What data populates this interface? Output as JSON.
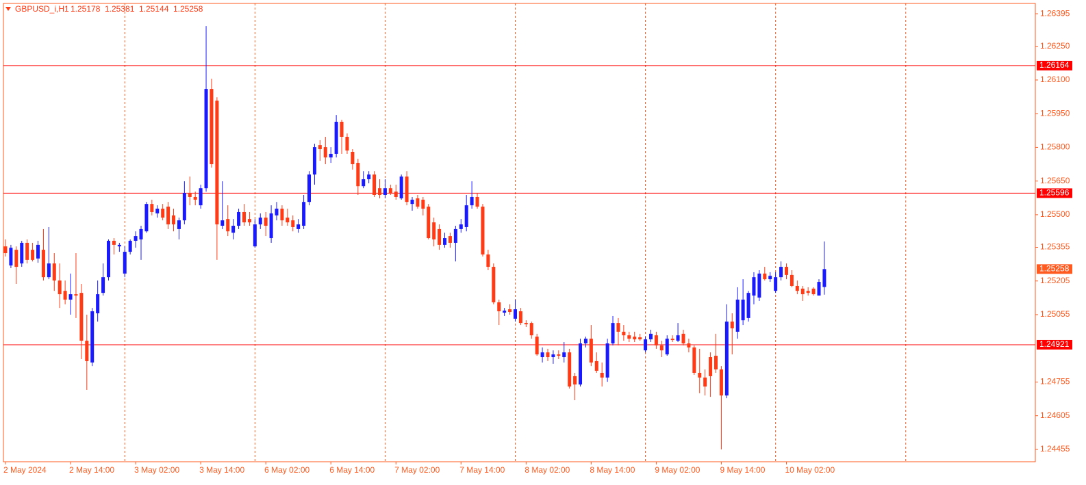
{
  "chart_data": {
    "type": "candlestick",
    "title": "GBPUSD_i,H1",
    "up_color": "#1a1aff",
    "down_color": "#ff3a14",
    "hline_color": "#ff0000",
    "axis_color": "#ff5a1f",
    "hlines": [
      1.26164,
      1.25596,
      1.24921
    ],
    "ylim": [
      1.244,
      1.26441
    ],
    "yticks": [
      1.26395,
      {
        "value": 1.2625,
        "label": "1.26250"
      },
      {
        "value": 1.261,
        "label": "1.26100"
      },
      {
        "value": 1.2595,
        "label": "1.25950"
      },
      {
        "value": 1.258,
        "label": "1.25800"
      },
      {
        "value": 1.2565,
        "label": "1.25650"
      },
      {
        "value": 1.255,
        "label": "1.25500"
      },
      1.25355,
      1.25205,
      1.25055,
      1.24755,
      1.24605,
      1.24455
    ],
    "categories": [
      "2 May 2024",
      null,
      null,
      null,
      null,
      null,
      null,
      null,
      null,
      null,
      null,
      null,
      "2 May 14:00",
      null,
      null,
      null,
      null,
      null,
      null,
      null,
      null,
      null,
      null,
      null,
      "3 May 02:00",
      null,
      null,
      null,
      null,
      null,
      null,
      null,
      null,
      null,
      null,
      null,
      "3 May 14:00",
      null,
      null,
      null,
      null,
      null,
      null,
      null,
      null,
      null,
      null,
      null,
      "6 May 02:00",
      null,
      null,
      null,
      null,
      null,
      null,
      null,
      null,
      null,
      null,
      null,
      "6 May 14:00",
      null,
      null,
      null,
      null,
      null,
      null,
      null,
      null,
      null,
      null,
      null,
      "7 May 02:00",
      null,
      null,
      null,
      null,
      null,
      null,
      null,
      null,
      null,
      null,
      null,
      "7 May 14:00",
      null,
      null,
      null,
      null,
      null,
      null,
      null,
      null,
      null,
      null,
      null,
      "8 May 02:00",
      null,
      null,
      null,
      null,
      null,
      null,
      null,
      null,
      null,
      null,
      null,
      "8 May 14:00",
      null,
      null,
      null,
      null,
      null,
      null,
      null,
      null,
      null,
      null,
      null,
      "9 May 02:00",
      null,
      null,
      null,
      null,
      null,
      null,
      null,
      null,
      null,
      null,
      null,
      "9 May 14:00",
      null,
      null,
      null,
      null,
      null,
      null,
      null,
      null,
      null,
      null,
      null,
      "10 May 02:00",
      null,
      null,
      null,
      null,
      null,
      null,
      null
    ],
    "open": [
      1.25359,
      1.25274,
      1.25344,
      1.25283,
      1.25375,
      1.25344,
      1.25305,
      1.25344,
      1.25222,
      1.25283,
      1.25207,
      1.25161,
      1.25122,
      1.25146,
      1.25152,
      1.24939,
      1.24842,
      1.25061,
      1.25152,
      1.25222,
      1.25384,
      1.25359,
      1.25238,
      1.25335,
      1.25384,
      1.2539,
      1.25426,
      1.25548,
      1.25506,
      1.25527,
      1.25536,
      1.25497,
      1.25436,
      1.25475,
      1.25597,
      1.25579,
      1.25542,
      1.25618,
      1.2606,
      1.26008,
      1.25451,
      1.25481,
      1.2542,
      1.25451,
      1.25512,
      1.25481,
      1.25359,
      1.25457,
      1.25487,
      1.25396,
      1.25497,
      1.25527,
      1.25487,
      1.25475,
      1.25436,
      1.25451,
      1.25557,
      1.25679,
      1.2581,
      1.25801,
      1.25755,
      1.25771,
      1.25914,
      1.25847,
      1.2578,
      1.25731,
      1.25627,
      1.25658,
      1.25679,
      1.25618,
      1.25588,
      1.25618,
      1.25603,
      1.25573,
      1.2567,
      1.25548,
      1.25573,
      1.25567,
      1.25536,
      1.25466,
      1.25436,
      1.25366,
      1.25405,
      1.25375,
      1.25436,
      1.25445,
      1.25542,
      1.25579,
      1.25536,
      1.25323,
      1.25268,
      1.2511,
      1.25064,
      1.25079,
      1.25037,
      1.2507,
      1.25018,
      1.25018,
      1.24957,
      1.24866,
      1.24887,
      1.24866,
      1.24878,
      1.24866,
      1.24887,
      1.24781,
      1.24744,
      1.24927,
      1.24948,
      1.24848,
      1.24796,
      1.24775,
      1.24927,
      1.25018,
      1.24979,
      1.24963,
      1.24957,
      1.24954,
      1.24896,
      1.24945,
      1.24963,
      1.24918,
      1.24878,
      1.24948,
      1.24939,
      1.2497,
      1.24927,
      1.24909,
      1.24796,
      1.24775,
      1.24866,
      1.24872,
      1.24811,
      1.24695,
      1.25024,
      1.24979,
      1.2503,
      1.2504,
      1.2514,
      1.25131,
      1.25238,
      1.25213,
      1.25161,
      1.25222,
      1.25268,
      1.25232,
      1.25183,
      1.25171,
      1.25161,
      1.25171,
      1.2514,
      1.25178
    ],
    "high": [
      1.2539,
      1.25366,
      1.25359,
      1.25384,
      1.2539,
      1.25375,
      1.25384,
      1.25436,
      1.25445,
      1.25329,
      1.25283,
      1.25207,
      1.25238,
      1.25329,
      1.25192,
      1.25055,
      1.25085,
      1.25207,
      1.25283,
      1.2539,
      1.25396,
      1.25375,
      1.25359,
      1.2539,
      1.25426,
      1.25451,
      1.25557,
      1.25567,
      1.25542,
      1.25548,
      1.25557,
      1.25527,
      1.25487,
      1.25649,
      1.2567,
      1.25603,
      1.25634,
      1.2634,
      1.26106,
      1.26023,
      1.25649,
      1.25542,
      1.25481,
      1.25527,
      1.25548,
      1.25512,
      1.25481,
      1.25506,
      1.25512,
      1.25542,
      1.25557,
      1.25542,
      1.25527,
      1.25497,
      1.25481,
      1.25588,
      1.25694,
      1.25816,
      1.25832,
      1.25847,
      1.25801,
      1.25944,
      1.25923,
      1.25862,
      1.25792,
      1.25749,
      1.25694,
      1.25694,
      1.25694,
      1.25658,
      1.25658,
      1.25634,
      1.25634,
      1.25679,
      1.25694,
      1.25579,
      1.25588,
      1.25579,
      1.25548,
      1.25487,
      1.25457,
      1.2542,
      1.2542,
      1.25451,
      1.25481,
      1.25588,
      1.25649,
      1.25597,
      1.25548,
      1.25344,
      1.25283,
      1.25122,
      1.25085,
      1.25101,
      1.25122,
      1.25085,
      1.2503,
      1.25024,
      1.2497,
      1.24909,
      1.24903,
      1.24896,
      1.24896,
      1.24933,
      1.24903,
      1.24796,
      1.24948,
      1.24957,
      1.25009,
      1.24887,
      1.24842,
      1.24948,
      1.25049,
      1.2504,
      1.25009,
      1.24979,
      1.24979,
      1.2497,
      1.24957,
      1.24988,
      1.24979,
      1.24939,
      1.24963,
      1.24963,
      1.25018,
      1.24988,
      1.24948,
      1.24918,
      1.24903,
      1.24811,
      1.24887,
      1.2497,
      1.24826,
      1.25101,
      1.25061,
      1.25177,
      1.25213,
      1.25161,
      1.25244,
      1.25253,
      1.25268,
      1.25244,
      1.25244,
      1.25292,
      1.25283,
      1.25253,
      1.25207,
      1.25183,
      1.25177,
      1.25177,
      1.25213,
      1.25381
    ],
    "low": [
      1.25314,
      1.25262,
      1.25192,
      1.25268,
      1.25283,
      1.25292,
      1.25286,
      1.25207,
      1.25213,
      1.25161,
      1.25085,
      1.25101,
      1.25055,
      1.2504,
      1.24857,
      1.2472,
      1.24826,
      1.25024,
      1.2514,
      1.25207,
      1.25323,
      1.25335,
      1.25222,
      1.25323,
      1.25353,
      1.25299,
      1.2542,
      1.25497,
      1.25487,
      1.25475,
      1.25436,
      1.25426,
      1.2539,
      1.25457,
      1.25542,
      1.25542,
      1.25527,
      1.25603,
      1.2571,
      1.25299,
      1.25436,
      1.25405,
      1.2539,
      1.25436,
      1.25451,
      1.25451,
      1.25353,
      1.25436,
      1.25405,
      1.25375,
      1.25475,
      1.25451,
      1.25451,
      1.25426,
      1.2542,
      1.25436,
      1.25542,
      1.25634,
      1.2574,
      1.25725,
      1.25731,
      1.25755,
      1.25771,
      1.25771,
      1.25701,
      1.25588,
      1.25618,
      1.2564,
      1.25579,
      1.25573,
      1.25573,
      1.25588,
      1.25567,
      1.25567,
      1.25542,
      1.25518,
      1.25527,
      1.25497,
      1.2539,
      1.25359,
      1.25344,
      1.25353,
      1.25353,
      1.25292,
      1.2542,
      1.25426,
      1.25527,
      1.25527,
      1.25314,
      1.25253,
      1.25101,
      1.25009,
      1.25049,
      1.25055,
      1.25024,
      1.25009,
      1.25,
      1.24948,
      1.24872,
      1.24842,
      1.24848,
      1.24836,
      1.24857,
      1.24842,
      1.24726,
      1.24674,
      1.24735,
      1.24909,
      1.24826,
      1.24796,
      1.24735,
      1.24756,
      1.24918,
      1.24918,
      1.24939,
      1.24933,
      1.24933,
      1.24939,
      1.24887,
      1.24933,
      1.24903,
      1.24866,
      1.24872,
      1.24933,
      1.24933,
      1.24918,
      1.24887,
      1.24787,
      1.24705,
      1.24695,
      1.24689,
      1.24796,
      1.24455,
      1.24683,
      1.24878,
      1.24948,
      1.25009,
      1.25024,
      1.25101,
      1.25116,
      1.25207,
      1.25201,
      1.25152,
      1.25207,
      1.25213,
      1.25177,
      1.25146,
      1.25116,
      1.2514,
      1.2514,
      1.2514,
      1.25144
    ],
    "close": [
      1.25329,
      1.25353,
      1.25268,
      1.25375,
      1.25299,
      1.25299,
      1.25366,
      1.25222,
      1.25283,
      1.25207,
      1.25146,
      1.25122,
      1.25146,
      1.2514,
      1.24939,
      1.24848,
      1.2507,
      1.25146,
      1.25222,
      1.25384,
      1.25366,
      1.25366,
      1.25335,
      1.25384,
      1.25405,
      1.25436,
      1.25548,
      1.25512,
      1.25527,
      1.25487,
      1.25457,
      1.25457,
      1.25475,
      1.25597,
      1.25579,
      1.25567,
      1.25618,
      1.2606,
      1.25725,
      1.25457,
      1.25475,
      1.25426,
      1.25451,
      1.25512,
      1.25466,
      1.25466,
      1.25457,
      1.25487,
      1.25451,
      1.25506,
      1.25527,
      1.25475,
      1.25466,
      1.25445,
      1.25457,
      1.25557,
      1.25679,
      1.25801,
      1.25792,
      1.25755,
      1.25771,
      1.25914,
      1.25847,
      1.25786,
      1.25725,
      1.25627,
      1.25658,
      1.25679,
      1.25588,
      1.25588,
      1.25618,
      1.25597,
      1.25579,
      1.2567,
      1.25557,
      1.25567,
      1.25536,
      1.25527,
      1.25396,
      1.2539,
      1.25366,
      1.25396,
      1.25375,
      1.25436,
      1.25457,
      1.25542,
      1.25579,
      1.25536,
      1.25323,
      1.25268,
      1.2511,
      1.2507,
      1.25073,
      1.25067,
      1.25079,
      1.25018,
      1.25012,
      1.24963,
      1.24878,
      1.24887,
      1.24866,
      1.24878,
      1.24872,
      1.24887,
      1.24735,
      1.24744,
      1.24927,
      1.24948,
      1.24842,
      1.24805,
      1.24775,
      1.24927,
      1.25018,
      1.24979,
      1.24963,
      1.24948,
      1.24945,
      1.24945,
      1.24945,
      1.2497,
      1.24918,
      1.24896,
      1.24948,
      1.24942,
      1.24963,
      1.24927,
      1.24909,
      1.24796,
      1.24775,
      1.24735,
      1.24781,
      1.24811,
      1.24695,
      1.25024,
      1.24994,
      1.25122,
      1.25122,
      1.25152,
      1.25222,
      1.25238,
      1.25213,
      1.25228,
      1.25222,
      1.25268,
      1.25232,
      1.25183,
      1.25161,
      1.25146,
      1.25152,
      1.25146,
      1.25201,
      1.25258
    ]
  }
}
